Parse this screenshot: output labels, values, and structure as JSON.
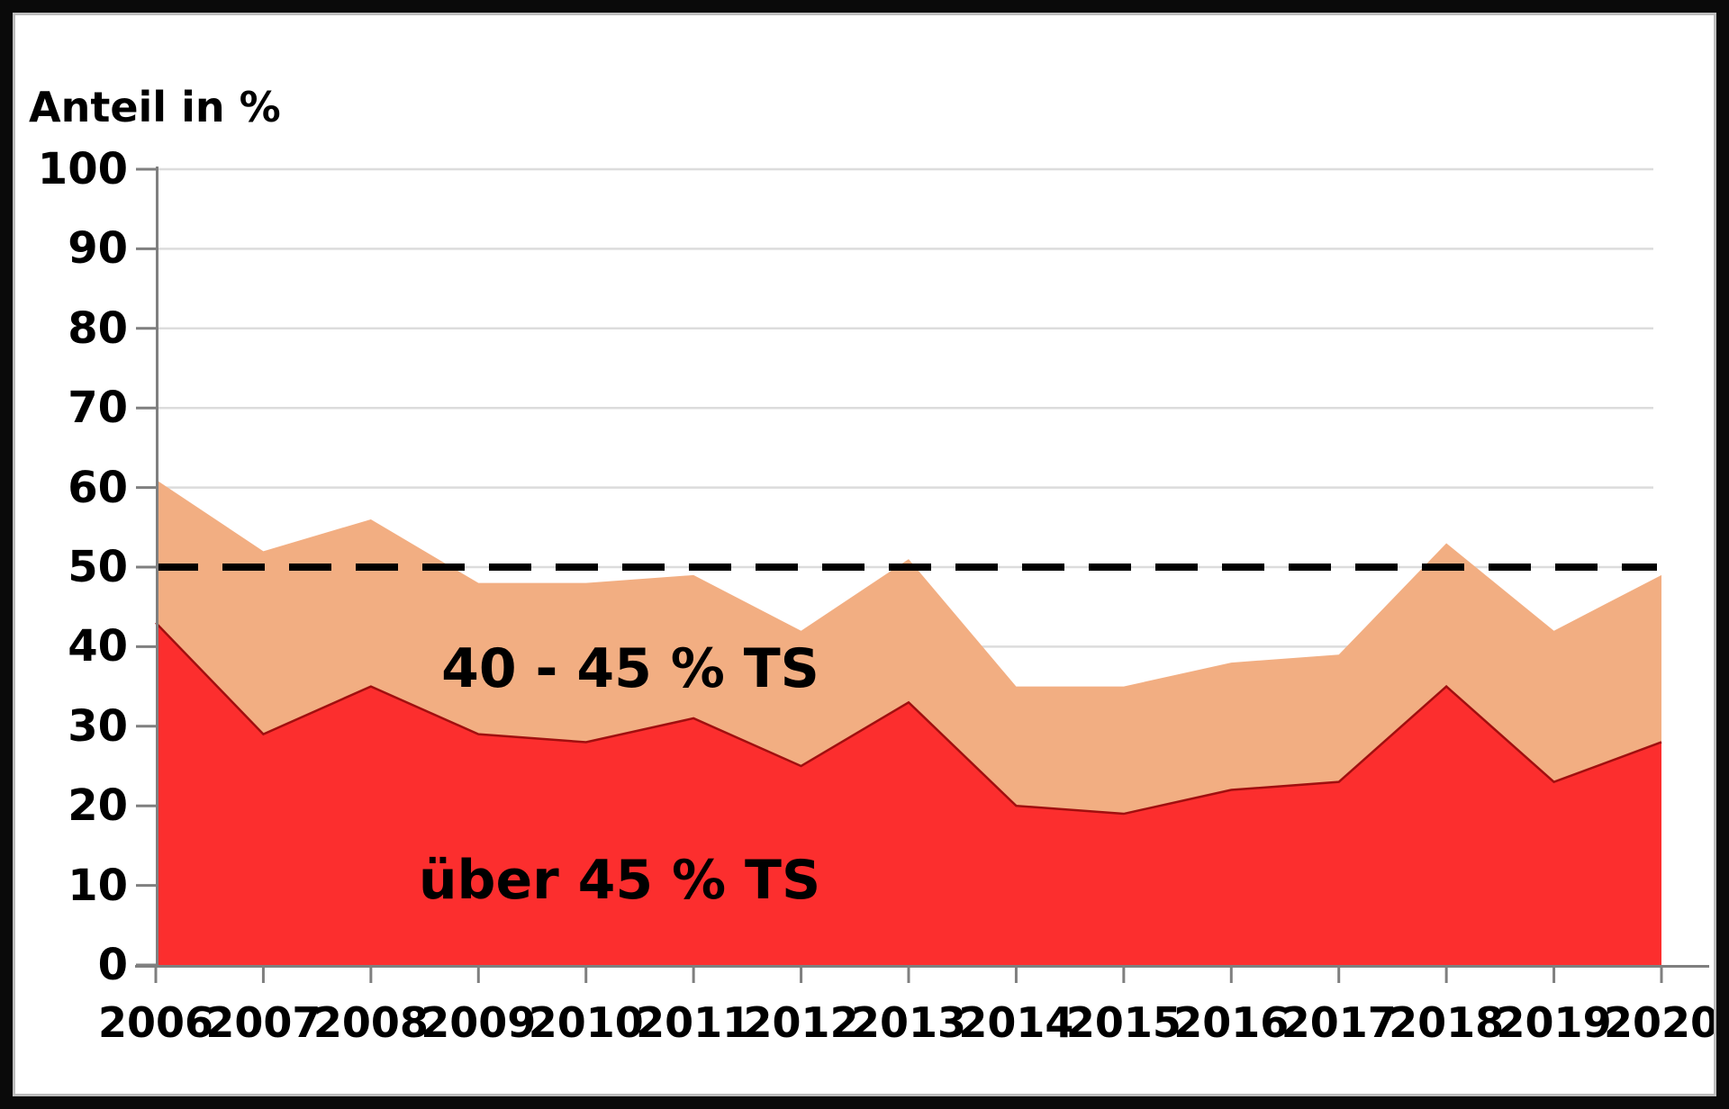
{
  "chart_data": {
    "type": "area",
    "stacked": true,
    "title": "Anteil in %",
    "ylabel": "Anteil in %",
    "xlabel": "",
    "x": [
      "2006",
      "2007",
      "2008",
      "2009",
      "2010",
      "2011",
      "2012",
      "2013",
      "2014",
      "2015",
      "2016",
      "2017",
      "2018",
      "2019",
      "2020"
    ],
    "series": [
      {
        "name": "über 45 % TS",
        "values": [
          43,
          29,
          35,
          29,
          28,
          31,
          25,
          33,
          20,
          19,
          22,
          23,
          35,
          23,
          28
        ],
        "fill": "#fc2e2e",
        "edge": "#a00f0f"
      },
      {
        "name": "40 - 45 % TS",
        "values": [
          18,
          23,
          21,
          19,
          20,
          18,
          17,
          18,
          15,
          16,
          16,
          16,
          18,
          19,
          21
        ],
        "fill": "#f2ae82",
        "edge": "none"
      }
    ],
    "stacked_totals": [
      61,
      52,
      56,
      48,
      48,
      49,
      42,
      51,
      35,
      35,
      38,
      39,
      53,
      42,
      49
    ],
    "ylim": [
      0,
      100
    ],
    "ytick_step": 10,
    "grid": "horizontal",
    "legend_position": "labels-inside-plot",
    "reference_line": {
      "value": 50,
      "style": "dashed",
      "color": "#000000"
    }
  },
  "colors": {
    "grid": "#dcdcdc",
    "axis": "#7f7f7f",
    "background": "#ffffff",
    "frame": "#0a0a0a",
    "text": "#000000"
  }
}
